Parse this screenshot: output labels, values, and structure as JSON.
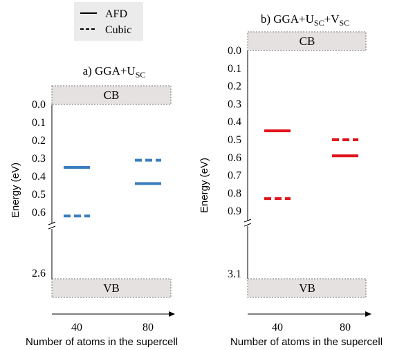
{
  "legend": {
    "items": [
      {
        "label": "AFD",
        "style": "solid"
      },
      {
        "label": "Cubic",
        "style": "dashed"
      }
    ],
    "placement": "top-left"
  },
  "chart_data": [
    {
      "type": "line",
      "title": "a) GGA+U",
      "title_sub": "SC",
      "ylabel": "Energy (eV)",
      "xlabel": "Number of atoms in the supercell",
      "x_categories": [
        "40",
        "80"
      ],
      "y_ticks": [
        "0.0",
        "0.1",
        "0.2",
        "0.3",
        "0.4",
        "0.5",
        "0.6"
      ],
      "y_bottom_label": "2.6",
      "ylim": [
        0,
        0.7
      ],
      "axis_break": true,
      "band_top": "CB",
      "band_bottom": "VB",
      "color": "#3a7ebf",
      "levels": [
        {
          "category": "40",
          "structure": "AFD",
          "energy": 0.35
        },
        {
          "category": "40",
          "structure": "Cubic",
          "energy": 0.62
        },
        {
          "category": "80",
          "structure": "AFD",
          "energy": 0.44
        },
        {
          "category": "80",
          "structure": "Cubic",
          "energy": 0.31
        }
      ]
    },
    {
      "type": "line",
      "title": "b) GGA+U",
      "title_sub": "SC",
      "title_mid": "+V",
      "title_sub2": "SC",
      "ylabel": "Energy (eV)",
      "xlabel": "Number of atoms in the supercell",
      "x_categories": [
        "40",
        "80"
      ],
      "y_ticks": [
        "0.0",
        "0.1",
        "0.2",
        "0.3",
        "0.4",
        "0.5",
        "0.6",
        "0.7",
        "0.8",
        "0.9"
      ],
      "y_bottom_label": "3.1",
      "ylim": [
        0,
        1.0
      ],
      "axis_break": true,
      "band_top": "CB",
      "band_bottom": "VB",
      "color": "#e0161d",
      "levels": [
        {
          "category": "40",
          "structure": "AFD",
          "energy": 0.45
        },
        {
          "category": "40",
          "structure": "Cubic",
          "energy": 0.83
        },
        {
          "category": "80",
          "structure": "AFD",
          "energy": 0.59
        },
        {
          "category": "80",
          "structure": "Cubic",
          "energy": 0.5
        }
      ]
    }
  ]
}
